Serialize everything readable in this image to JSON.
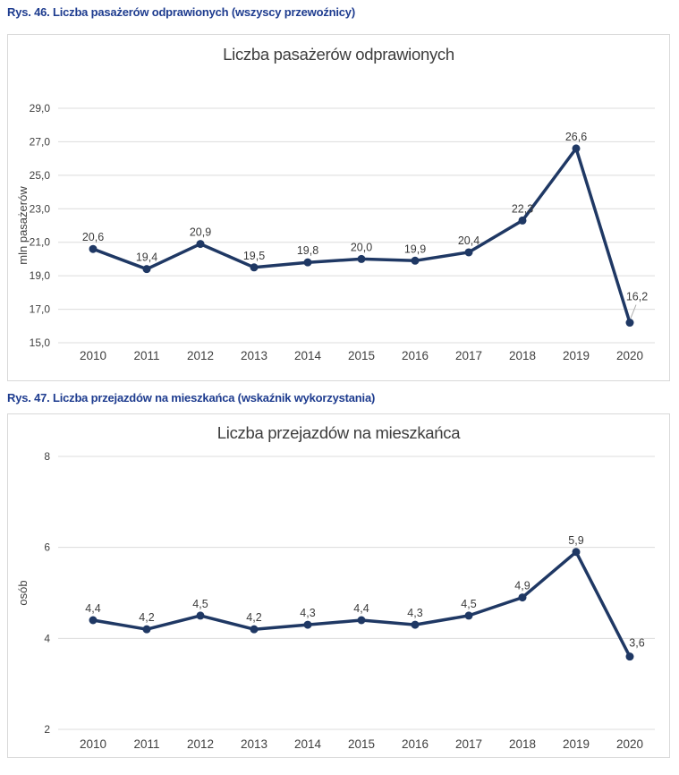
{
  "document": {
    "captions": [
      "Rys. 46. Liczba pasażerów odprawionych (wszyscy przewoźnicy)",
      "Rys. 47. Liczba przejazdów na mieszkańca (wskaźnik wykorzystania)"
    ]
  },
  "colors": {
    "caption_blue": "#1e3c8f",
    "series_navy": "#1f3864",
    "gridline_gray": "#dcdcdc",
    "panel_border_gray": "#d9d9d9",
    "axis_text_gray": "#404040",
    "leader_line_gray": "#adadad",
    "background": "#ffffff"
  },
  "chart_data": [
    {
      "type": "line",
      "title": "Liczba pasażerów odprawionych",
      "ylabel": "mln pasażerów",
      "xlabel": "",
      "categories": [
        "2010",
        "2011",
        "2012",
        "2013",
        "2014",
        "2015",
        "2016",
        "2017",
        "2018",
        "2019",
        "2020"
      ],
      "values": [
        20.6,
        19.4,
        20.9,
        19.5,
        19.8,
        20.0,
        19.9,
        20.4,
        22.3,
        26.6,
        16.2
      ],
      "point_labels": [
        "20,6",
        "19,4",
        "20,9",
        "19,5",
        "19,8",
        "20,0",
        "19,9",
        "20,4",
        "22,3",
        "26,6",
        "16,2"
      ],
      "ylim": [
        15.0,
        29.0
      ],
      "yticks": [
        15,
        17,
        19,
        21,
        23,
        25,
        27,
        29
      ],
      "ytick_labels": [
        "15,0",
        "17,0",
        "19,0",
        "21,0",
        "23,0",
        "25,0",
        "27,0",
        "29,0"
      ],
      "grid": "horizontal",
      "legend": "none",
      "markers": "filled-circle"
    },
    {
      "type": "line",
      "title": "Liczba przejazdów na mieszkańca",
      "ylabel": "osób",
      "xlabel": "",
      "categories": [
        "2010",
        "2011",
        "2012",
        "2013",
        "2014",
        "2015",
        "2016",
        "2017",
        "2018",
        "2019",
        "2020"
      ],
      "values": [
        4.4,
        4.2,
        4.5,
        4.2,
        4.3,
        4.4,
        4.3,
        4.5,
        4.9,
        5.9,
        3.6
      ],
      "point_labels": [
        "4,4",
        "4,2",
        "4,5",
        "4,2",
        "4,3",
        "4,4",
        "4,3",
        "4,5",
        "4,9",
        "5,9",
        "3,6"
      ],
      "ylim": [
        2,
        8
      ],
      "yticks": [
        2,
        4,
        6,
        8
      ],
      "ytick_labels": [
        "2",
        "4",
        "6",
        "8"
      ],
      "grid": "horizontal",
      "legend": "none",
      "markers": "filled-circle"
    }
  ]
}
